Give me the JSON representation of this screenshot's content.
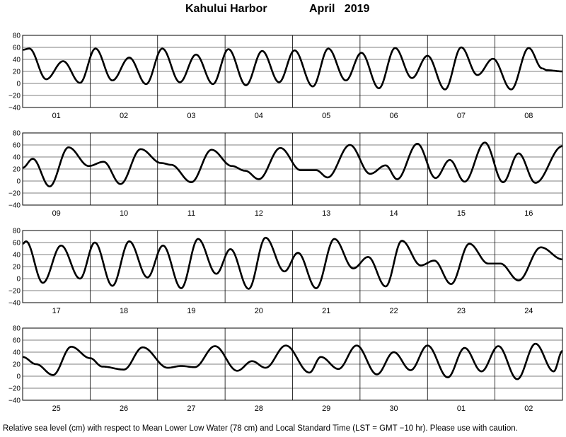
{
  "title": {
    "station": "Kahului Harbor",
    "month": "April",
    "year": "2019"
  },
  "footnote": "Relative sea level (cm) with respect to Mean Lower Low Water (78 cm) and Local Standard Time (LST = GMT −10 hr). Please use with caution.",
  "chart_data": {
    "type": "line",
    "title": "Kahului Harbor April 2019",
    "xlabel": "",
    "ylabel": "",
    "ylim": [
      -40,
      80
    ],
    "yticks": [
      80,
      60,
      40,
      20,
      0,
      -20,
      -40
    ],
    "grid": true,
    "series_color": "#000000",
    "panels": [
      {
        "days": [
          "01",
          "02",
          "03",
          "04",
          "05",
          "06",
          "07",
          "08"
        ],
        "start": 56,
        "extremes": [
          [
            0.1,
            58
          ],
          [
            0.35,
            7
          ],
          [
            0.6,
            37
          ],
          [
            0.85,
            1
          ],
          [
            1.08,
            58
          ],
          [
            1.33,
            5
          ],
          [
            1.58,
            43
          ],
          [
            1.83,
            -1
          ],
          [
            2.07,
            58
          ],
          [
            2.33,
            2
          ],
          [
            2.57,
            48
          ],
          [
            2.82,
            -1
          ],
          [
            3.05,
            57
          ],
          [
            3.31,
            -3
          ],
          [
            3.55,
            54
          ],
          [
            3.8,
            2
          ],
          [
            4.03,
            55
          ],
          [
            4.3,
            -5
          ],
          [
            4.53,
            58
          ],
          [
            4.79,
            5
          ],
          [
            5.02,
            51
          ],
          [
            5.28,
            -8
          ],
          [
            5.52,
            59
          ],
          [
            5.77,
            9
          ],
          [
            6.0,
            46
          ],
          [
            6.26,
            -10
          ],
          [
            6.5,
            60
          ],
          [
            6.74,
            14
          ],
          [
            6.97,
            41
          ],
          [
            7.24,
            -10
          ],
          [
            7.5,
            59
          ],
          [
            7.7,
            25
          ],
          [
            7.77,
            22
          ],
          [
            8.0,
            20
          ]
        ]
      },
      {
        "days": [
          "09",
          "10",
          "11",
          "12",
          "13",
          "14",
          "15",
          "16"
        ],
        "start": 22,
        "extremes": [
          [
            0.15,
            37
          ],
          [
            0.4,
            -9
          ],
          [
            0.68,
            56
          ],
          [
            0.98,
            25
          ],
          [
            1.2,
            32
          ],
          [
            1.45,
            -5
          ],
          [
            1.75,
            53
          ],
          [
            2.05,
            30
          ],
          [
            2.2,
            27
          ],
          [
            2.5,
            -2
          ],
          [
            2.8,
            52
          ],
          [
            3.1,
            25
          ],
          [
            3.3,
            17
          ],
          [
            3.5,
            3
          ],
          [
            3.82,
            55
          ],
          [
            4.12,
            18
          ],
          [
            4.35,
            18
          ],
          [
            4.52,
            6
          ],
          [
            4.85,
            60
          ],
          [
            5.15,
            12
          ],
          [
            5.38,
            26
          ],
          [
            5.55,
            3
          ],
          [
            5.85,
            62
          ],
          [
            6.12,
            5
          ],
          [
            6.33,
            35
          ],
          [
            6.55,
            -1
          ],
          [
            6.85,
            64
          ],
          [
            7.12,
            -2
          ],
          [
            7.35,
            46
          ],
          [
            7.6,
            -3
          ],
          [
            8.0,
            58
          ]
        ]
      },
      {
        "days": [
          "17",
          "18",
          "19",
          "20",
          "21",
          "22",
          "23",
          "24"
        ],
        "start": 58,
        "extremes": [
          [
            0.05,
            62
          ],
          [
            0.3,
            -7
          ],
          [
            0.57,
            55
          ],
          [
            0.85,
            0
          ],
          [
            1.07,
            60
          ],
          [
            1.33,
            -12
          ],
          [
            1.58,
            62
          ],
          [
            1.85,
            2
          ],
          [
            2.08,
            55
          ],
          [
            2.35,
            -16
          ],
          [
            2.6,
            66
          ],
          [
            2.87,
            8
          ],
          [
            3.08,
            49
          ],
          [
            3.35,
            -17
          ],
          [
            3.6,
            68
          ],
          [
            3.88,
            12
          ],
          [
            4.08,
            43
          ],
          [
            4.35,
            -16
          ],
          [
            4.62,
            66
          ],
          [
            4.9,
            17
          ],
          [
            5.12,
            36
          ],
          [
            5.38,
            -13
          ],
          [
            5.62,
            63
          ],
          [
            5.9,
            22
          ],
          [
            6.1,
            30
          ],
          [
            6.35,
            -9
          ],
          [
            6.62,
            58
          ],
          [
            6.9,
            25
          ],
          [
            7.08,
            25
          ],
          [
            7.35,
            -3
          ],
          [
            7.68,
            52
          ],
          [
            8.0,
            32
          ]
        ]
      },
      {
        "days": [
          "25",
          "26",
          "27",
          "28",
          "29",
          "30",
          "01",
          "02"
        ],
        "start": 32,
        "extremes": [
          [
            0.2,
            20
          ],
          [
            0.45,
            2
          ],
          [
            0.72,
            49
          ],
          [
            1.0,
            30
          ],
          [
            1.18,
            16
          ],
          [
            1.5,
            11
          ],
          [
            1.78,
            48
          ],
          [
            2.15,
            14
          ],
          [
            2.35,
            17
          ],
          [
            2.55,
            15
          ],
          [
            2.85,
            50
          ],
          [
            3.18,
            9
          ],
          [
            3.4,
            25
          ],
          [
            3.6,
            14
          ],
          [
            3.9,
            51
          ],
          [
            4.25,
            6
          ],
          [
            4.42,
            32
          ],
          [
            4.68,
            12
          ],
          [
            4.95,
            51
          ],
          [
            5.25,
            3
          ],
          [
            5.5,
            40
          ],
          [
            5.75,
            10
          ],
          [
            6.0,
            51
          ],
          [
            6.3,
            -2
          ],
          [
            6.55,
            47
          ],
          [
            6.8,
            8
          ],
          [
            7.05,
            50
          ],
          [
            7.33,
            -5
          ],
          [
            7.6,
            54
          ],
          [
            7.87,
            8
          ],
          [
            8.0,
            42
          ]
        ]
      }
    ]
  }
}
